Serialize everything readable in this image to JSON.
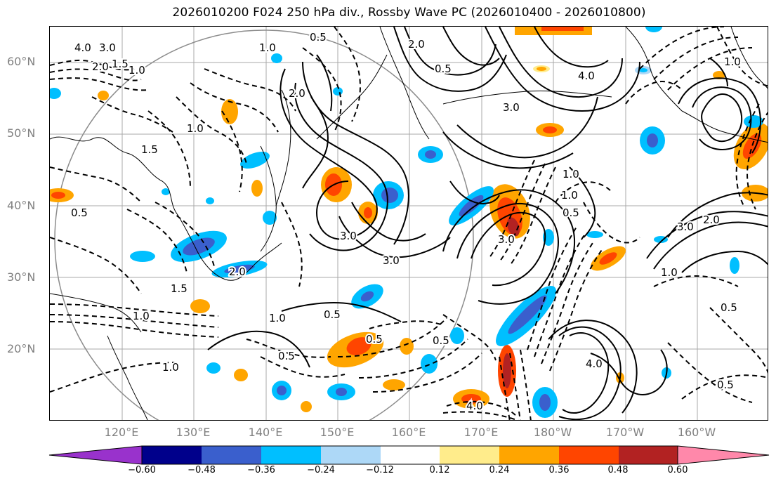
{
  "title": "2026010200 F024 250 hPa div., Rossby Wave PC (2026010400 - 2026010800)",
  "lat_labels": [
    "60°N",
    "50°N",
    "40°N",
    "30°N",
    "20°N"
  ],
  "lon_labels": [
    "120°E",
    "130°E",
    "140°E",
    "150°E",
    "160°E",
    "170°E",
    "180°W",
    "170°W",
    "160°W"
  ],
  "colorbar": {
    "ticks": [
      "−0.60",
      "−0.48",
      "−0.36",
      "−0.24",
      "−0.12",
      "0.12",
      "0.24",
      "0.36",
      "0.48",
      "0.60"
    ],
    "colors": [
      "#9932cc",
      "#00008b",
      "#3a5fcd",
      "#00bfff",
      "#add8f7",
      "#ffffff",
      "#ffec8b",
      "#ffa500",
      "#ff4500",
      "#b22222",
      "#ff88aa"
    ]
  },
  "contour_labels": [
    "3.0",
    "4.0",
    "2.0",
    "1.5",
    "1.0",
    "0.5",
    "2.0",
    "3.0",
    "1.0",
    "0.5",
    "4.0",
    "3.0",
    "2.0",
    "3.0",
    "1.5",
    "0.5",
    "2.0",
    "3.0",
    "1.0",
    "0.5",
    "1.0",
    "0.5",
    "0.5",
    "1.0",
    "0.5",
    "4.0",
    "1.0",
    "0.5",
    "4.0",
    "0.5",
    "1.0",
    "3.0",
    "2.0",
    "1.0",
    "1.0",
    "0.5",
    "1.5",
    "1.0"
  ]
}
